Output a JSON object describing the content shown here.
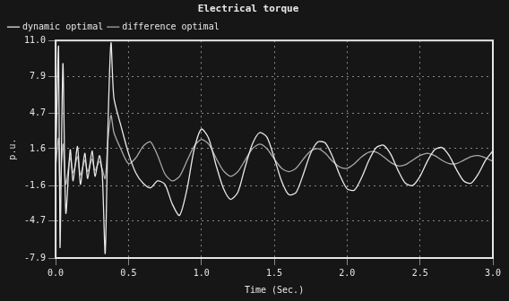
{
  "chart_data": {
    "type": "line",
    "title": "Electrical torque",
    "x_label": "Time (Sec.)",
    "y_label": "p.u.",
    "x": [
      0,
      0.02,
      0.03,
      0.05,
      0.07,
      0.1,
      0.12,
      0.15,
      0.17,
      0.2,
      0.22,
      0.25,
      0.27,
      0.3,
      0.32,
      0.34,
      0.36,
      0.38,
      0.4,
      0.45,
      0.5,
      0.55,
      0.6,
      0.65,
      0.7,
      0.75,
      0.8,
      0.85,
      0.9,
      0.95,
      1.0,
      1.05,
      1.1,
      1.15,
      1.2,
      1.25,
      1.3,
      1.35,
      1.4,
      1.45,
      1.5,
      1.55,
      1.6,
      1.65,
      1.7,
      1.75,
      1.8,
      1.85,
      1.9,
      1.95,
      2.0,
      2.05,
      2.1,
      2.15,
      2.2,
      2.25,
      2.3,
      2.35,
      2.4,
      2.45,
      2.5,
      2.55,
      2.6,
      2.65,
      2.7,
      2.75,
      2.8,
      2.85,
      2.9,
      2.95,
      3.0
    ],
    "series": [
      {
        "name": "dynamic optimal",
        "color": "#e8e8e8",
        "values": [
          0,
          10.5,
          -7.0,
          9.0,
          -4.0,
          1.5,
          -1.2,
          1.8,
          -1.5,
          1.2,
          -1.0,
          1.4,
          -0.8,
          1.0,
          -0.6,
          -7.5,
          4.0,
          10.8,
          6.0,
          3.5,
          1.2,
          -0.5,
          -1.4,
          -1.8,
          -1.2,
          -1.5,
          -3.2,
          -4.2,
          -2.0,
          1.5,
          3.3,
          2.5,
          0.2,
          -1.8,
          -2.8,
          -2.2,
          0.0,
          2.0,
          3.0,
          2.6,
          0.8,
          -1.2,
          -2.4,
          -2.2,
          -0.6,
          1.2,
          2.2,
          2.1,
          0.9,
          -0.7,
          -1.9,
          -2.0,
          -0.9,
          0.6,
          1.7,
          1.9,
          1.1,
          -0.3,
          -1.4,
          -1.6,
          -0.8,
          0.5,
          1.5,
          1.7,
          1.0,
          -0.2,
          -1.2,
          -1.4,
          -0.6,
          0.6,
          1.4
        ]
      },
      {
        "name": "difference optimal",
        "color": "#a8a8a8",
        "values": [
          0,
          2.5,
          -2.0,
          2.0,
          -1.5,
          0.8,
          -0.5,
          0.9,
          -0.7,
          0.6,
          -0.4,
          0.7,
          -0.3,
          0.5,
          -0.2,
          -1.0,
          2.5,
          4.5,
          3.0,
          1.5,
          0.3,
          0.8,
          1.8,
          2.2,
          1.0,
          -0.6,
          -1.2,
          -0.8,
          0.5,
          1.8,
          2.4,
          2.0,
          0.8,
          -0.3,
          -0.8,
          -0.4,
          0.6,
          1.6,
          2.0,
          1.6,
          0.7,
          -0.1,
          -0.4,
          -0.1,
          0.7,
          1.4,
          1.6,
          1.2,
          0.5,
          0.0,
          -0.1,
          0.3,
          0.9,
          1.3,
          1.3,
          0.9,
          0.4,
          0.1,
          0.2,
          0.6,
          1.0,
          1.2,
          1.0,
          0.6,
          0.3,
          0.3,
          0.6,
          0.9,
          1.0,
          0.8,
          0.5
        ]
      }
    ],
    "xlim": [
      0,
      3
    ],
    "xticks": [
      {
        "value": 0,
        "label": "0.0"
      },
      0.5,
      {
        "value": 1,
        "label": "1.0"
      },
      1.5,
      {
        "value": 2,
        "label": "2.0"
      },
      2.5,
      {
        "value": 3,
        "label": "3.0"
      }
    ],
    "ylim": [
      -7.9,
      11
    ],
    "yticks": [
      -7.9,
      -4.7,
      -1.6,
      1.6,
      4.7,
      7.9,
      {
        "value": 11,
        "label": "11.0"
      }
    ],
    "grid": true,
    "legend": "top-left"
  }
}
